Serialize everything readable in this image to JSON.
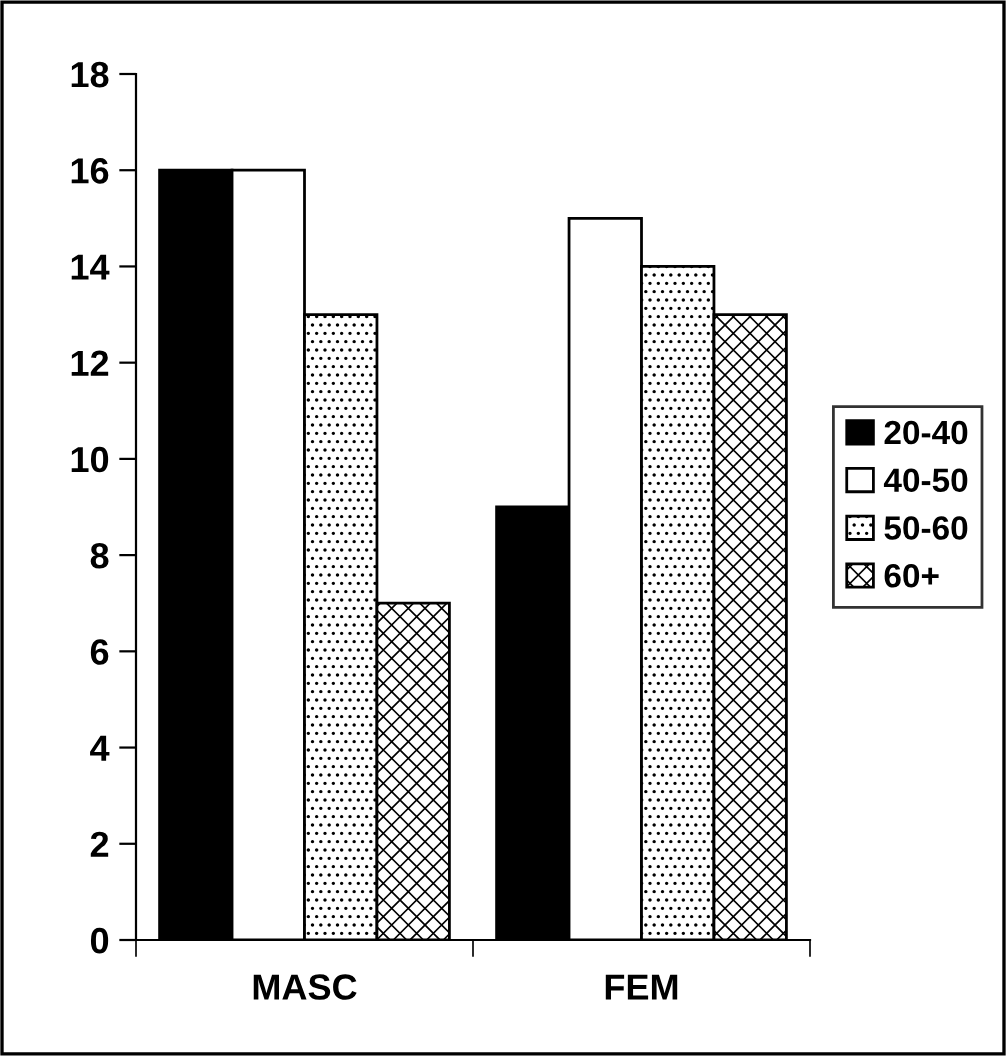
{
  "chart_data": {
    "type": "bar",
    "categories": [
      "MASC",
      "FEM"
    ],
    "series": [
      {
        "name": "20-40",
        "color": "#000000",
        "values": [
          16,
          9
        ]
      },
      {
        "name": "40-50",
        "color": "#ffffff",
        "values": [
          16,
          15
        ]
      },
      {
        "name": "50-60",
        "color": "#000000",
        "values": [
          13,
          14
        ]
      },
      {
        "name": "60+",
        "color": "#000000",
        "values": [
          7,
          13
        ]
      }
    ],
    "ylim": [
      0,
      18
    ],
    "yticks": [
      0,
      2,
      4,
      6,
      8,
      10,
      12,
      14,
      16,
      18
    ],
    "grid": false,
    "legend": "right"
  }
}
